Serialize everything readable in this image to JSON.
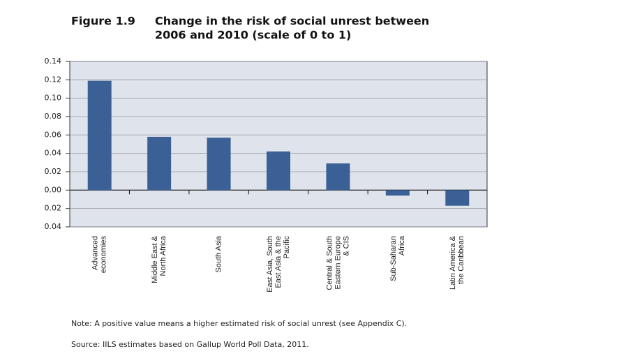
{
  "chart_data": {
    "type": "bar",
    "figure_label": "Figure 1.9",
    "title": [
      "Change in the risk of social unrest between",
      "2006 and 2010 (scale of 0 to 1)"
    ],
    "categories": [
      [
        "Advanced",
        "economies"
      ],
      [
        "Middle East &",
        "North Africa"
      ],
      [
        "South Asia"
      ],
      [
        "East Asia, South",
        "East Asia & the",
        "Pacific"
      ],
      [
        "Central & South",
        "Eastern Europe",
        "& CIS"
      ],
      [
        "Sub-Saharan",
        "Africa"
      ],
      [
        "Latin America &",
        "the Caribbean"
      ]
    ],
    "values": [
      0.119,
      0.058,
      0.057,
      0.042,
      0.029,
      -0.006,
      -0.017
    ],
    "color": "#3a6096",
    "ylim": [
      -0.04,
      0.14
    ],
    "yticks": [
      {
        "value": -0.04,
        "label": "0.04"
      },
      {
        "value": -0.02,
        "label": "0.02"
      },
      {
        "value": 0,
        "label": "0.00"
      },
      {
        "value": 0.02,
        "label": "0.02"
      },
      {
        "value": 0.04,
        "label": "0.04"
      },
      {
        "value": 0.06,
        "label": "0.06"
      },
      {
        "value": 0.08,
        "label": "0.08"
      },
      {
        "value": 0.1,
        "label": "0.10"
      },
      {
        "value": 0.12,
        "label": "0.12"
      },
      {
        "value": 0.14,
        "label": "0.14"
      }
    ],
    "grid": true,
    "notes": [
      "Note: A positive value means a higher estimated risk of social unrest (see Appendix C).",
      "Source: IILS estimates based on Gallup World Poll Data, 2011."
    ]
  }
}
